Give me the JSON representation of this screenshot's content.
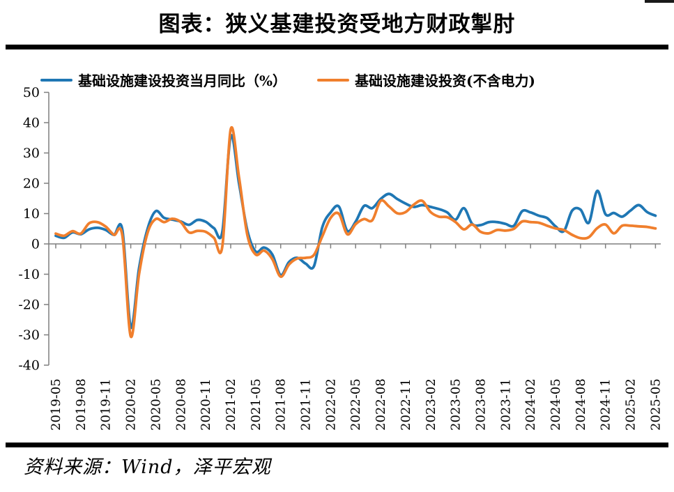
{
  "page": {
    "title": "图表：狭义基建投资受地方财政掣肘",
    "source": "资料来源：Wind，泽平宏观"
  },
  "legend": {
    "items": [
      {
        "label": "基础设施建设投资当月同比（%）",
        "color": "#1F77B4"
      },
      {
        "label": "基础设施建设投资(不含电力)",
        "color": "#F07F2D"
      }
    ]
  },
  "chart_data": {
    "type": "line",
    "title": "图表：狭义基建投资受地方财政掣肘",
    "xlabel": "",
    "ylabel": "",
    "ylim": [
      -40,
      50
    ],
    "grid": false,
    "legend_position": "top",
    "axis_color": "#7f7f7f",
    "y_ticks": [
      50,
      40,
      30,
      20,
      10,
      0,
      -10,
      -20,
      -30,
      -40
    ],
    "x": [
      "2019-05",
      "2019-06",
      "2019-07",
      "2019-08",
      "2019-09",
      "2019-10",
      "2019-11",
      "2019-12",
      "2020-01",
      "2020-02",
      "2020-03",
      "2020-04",
      "2020-05",
      "2020-06",
      "2020-07",
      "2020-08",
      "2020-09",
      "2020-10",
      "2020-11",
      "2020-12",
      "2021-01",
      "2021-02",
      "2021-03",
      "2021-04",
      "2021-05",
      "2021-06",
      "2021-07",
      "2021-08",
      "2021-09",
      "2021-10",
      "2021-11",
      "2021-12",
      "2022-01",
      "2022-02",
      "2022-03",
      "2022-04",
      "2022-05",
      "2022-06",
      "2022-07",
      "2022-08",
      "2022-09",
      "2022-10",
      "2022-11",
      "2022-12",
      "2023-01",
      "2023-02",
      "2023-03",
      "2023-04",
      "2023-05",
      "2023-06",
      "2023-07",
      "2023-08",
      "2023-09",
      "2023-10",
      "2023-11",
      "2023-12",
      "2024-01",
      "2024-02",
      "2024-03",
      "2024-04",
      "2024-05",
      "2024-06",
      "2024-07",
      "2024-08",
      "2024-09",
      "2024-10",
      "2024-11",
      "2024-12",
      "2025-01",
      "2025-02",
      "2025-03",
      "2025-04",
      "2025-05"
    ],
    "x_tick_labels": [
      "2019-05",
      "2019-08",
      "2019-11",
      "2020-02",
      "2020-05",
      "2020-08",
      "2020-11",
      "2021-02",
      "2021-05",
      "2021-08",
      "2021-11",
      "2022-02",
      "2022-05",
      "2022-08",
      "2022-11",
      "2023-02",
      "2023-05",
      "2023-08",
      "2023-11",
      "2024-02",
      "2024-05",
      "2024-08",
      "2024-11",
      "2025-02",
      "2025-05"
    ],
    "series": [
      {
        "name": "基础设施建设投资当月同比（%）",
        "color": "#1F77B4",
        "values": [
          2.7,
          2.0,
          3.8,
          3.2,
          4.8,
          5.3,
          4.6,
          3.0,
          4.6,
          -27.5,
          -8.0,
          4.8,
          10.8,
          8.6,
          8.0,
          7.4,
          6.3,
          7.9,
          7.3,
          5.2,
          4.0,
          35.5,
          20.0,
          4.5,
          -2.5,
          -1.2,
          -3.5,
          -10.3,
          -6.0,
          -4.6,
          -6.5,
          -7.3,
          5.5,
          10.4,
          12.3,
          4.3,
          7.3,
          12.5,
          11.8,
          14.8,
          16.5,
          14.8,
          13.3,
          12.2,
          12.8,
          12.2,
          11.5,
          10.4,
          8.0,
          11.8,
          6.6,
          6.2,
          7.2,
          7.2,
          6.6,
          6.0,
          10.8,
          10.4,
          9.3,
          8.5,
          5.8,
          4.2,
          11.0,
          11.3,
          7.0,
          17.5,
          9.8,
          10.2,
          9.0,
          11.0,
          12.8,
          10.5,
          9.3
        ]
      },
      {
        "name": "基础设施建设投资(不含电力)",
        "color": "#F07F2D",
        "values": [
          3.4,
          2.7,
          4.2,
          3.4,
          6.8,
          7.2,
          5.7,
          3.0,
          2.7,
          -30.5,
          -10.0,
          3.5,
          8.2,
          7.2,
          8.3,
          7.2,
          3.8,
          4.3,
          4.0,
          2.0,
          -0.8,
          37.8,
          22.0,
          3.0,
          -3.5,
          -2.2,
          -5.0,
          -10.8,
          -6.8,
          -4.8,
          -4.6,
          -3.6,
          2.5,
          8.6,
          9.9,
          3.2,
          6.5,
          8.2,
          7.8,
          14.2,
          12.4,
          10.1,
          10.5,
          13.0,
          14.2,
          10.5,
          9.0,
          8.8,
          7.2,
          4.8,
          6.4,
          4.0,
          3.5,
          4.6,
          4.4,
          5.0,
          7.4,
          7.2,
          7.0,
          6.0,
          5.1,
          4.6,
          3.0,
          1.9,
          2.2,
          5.2,
          6.4,
          3.5,
          6.0,
          6.0,
          5.8,
          5.6,
          5.1
        ]
      }
    ]
  }
}
